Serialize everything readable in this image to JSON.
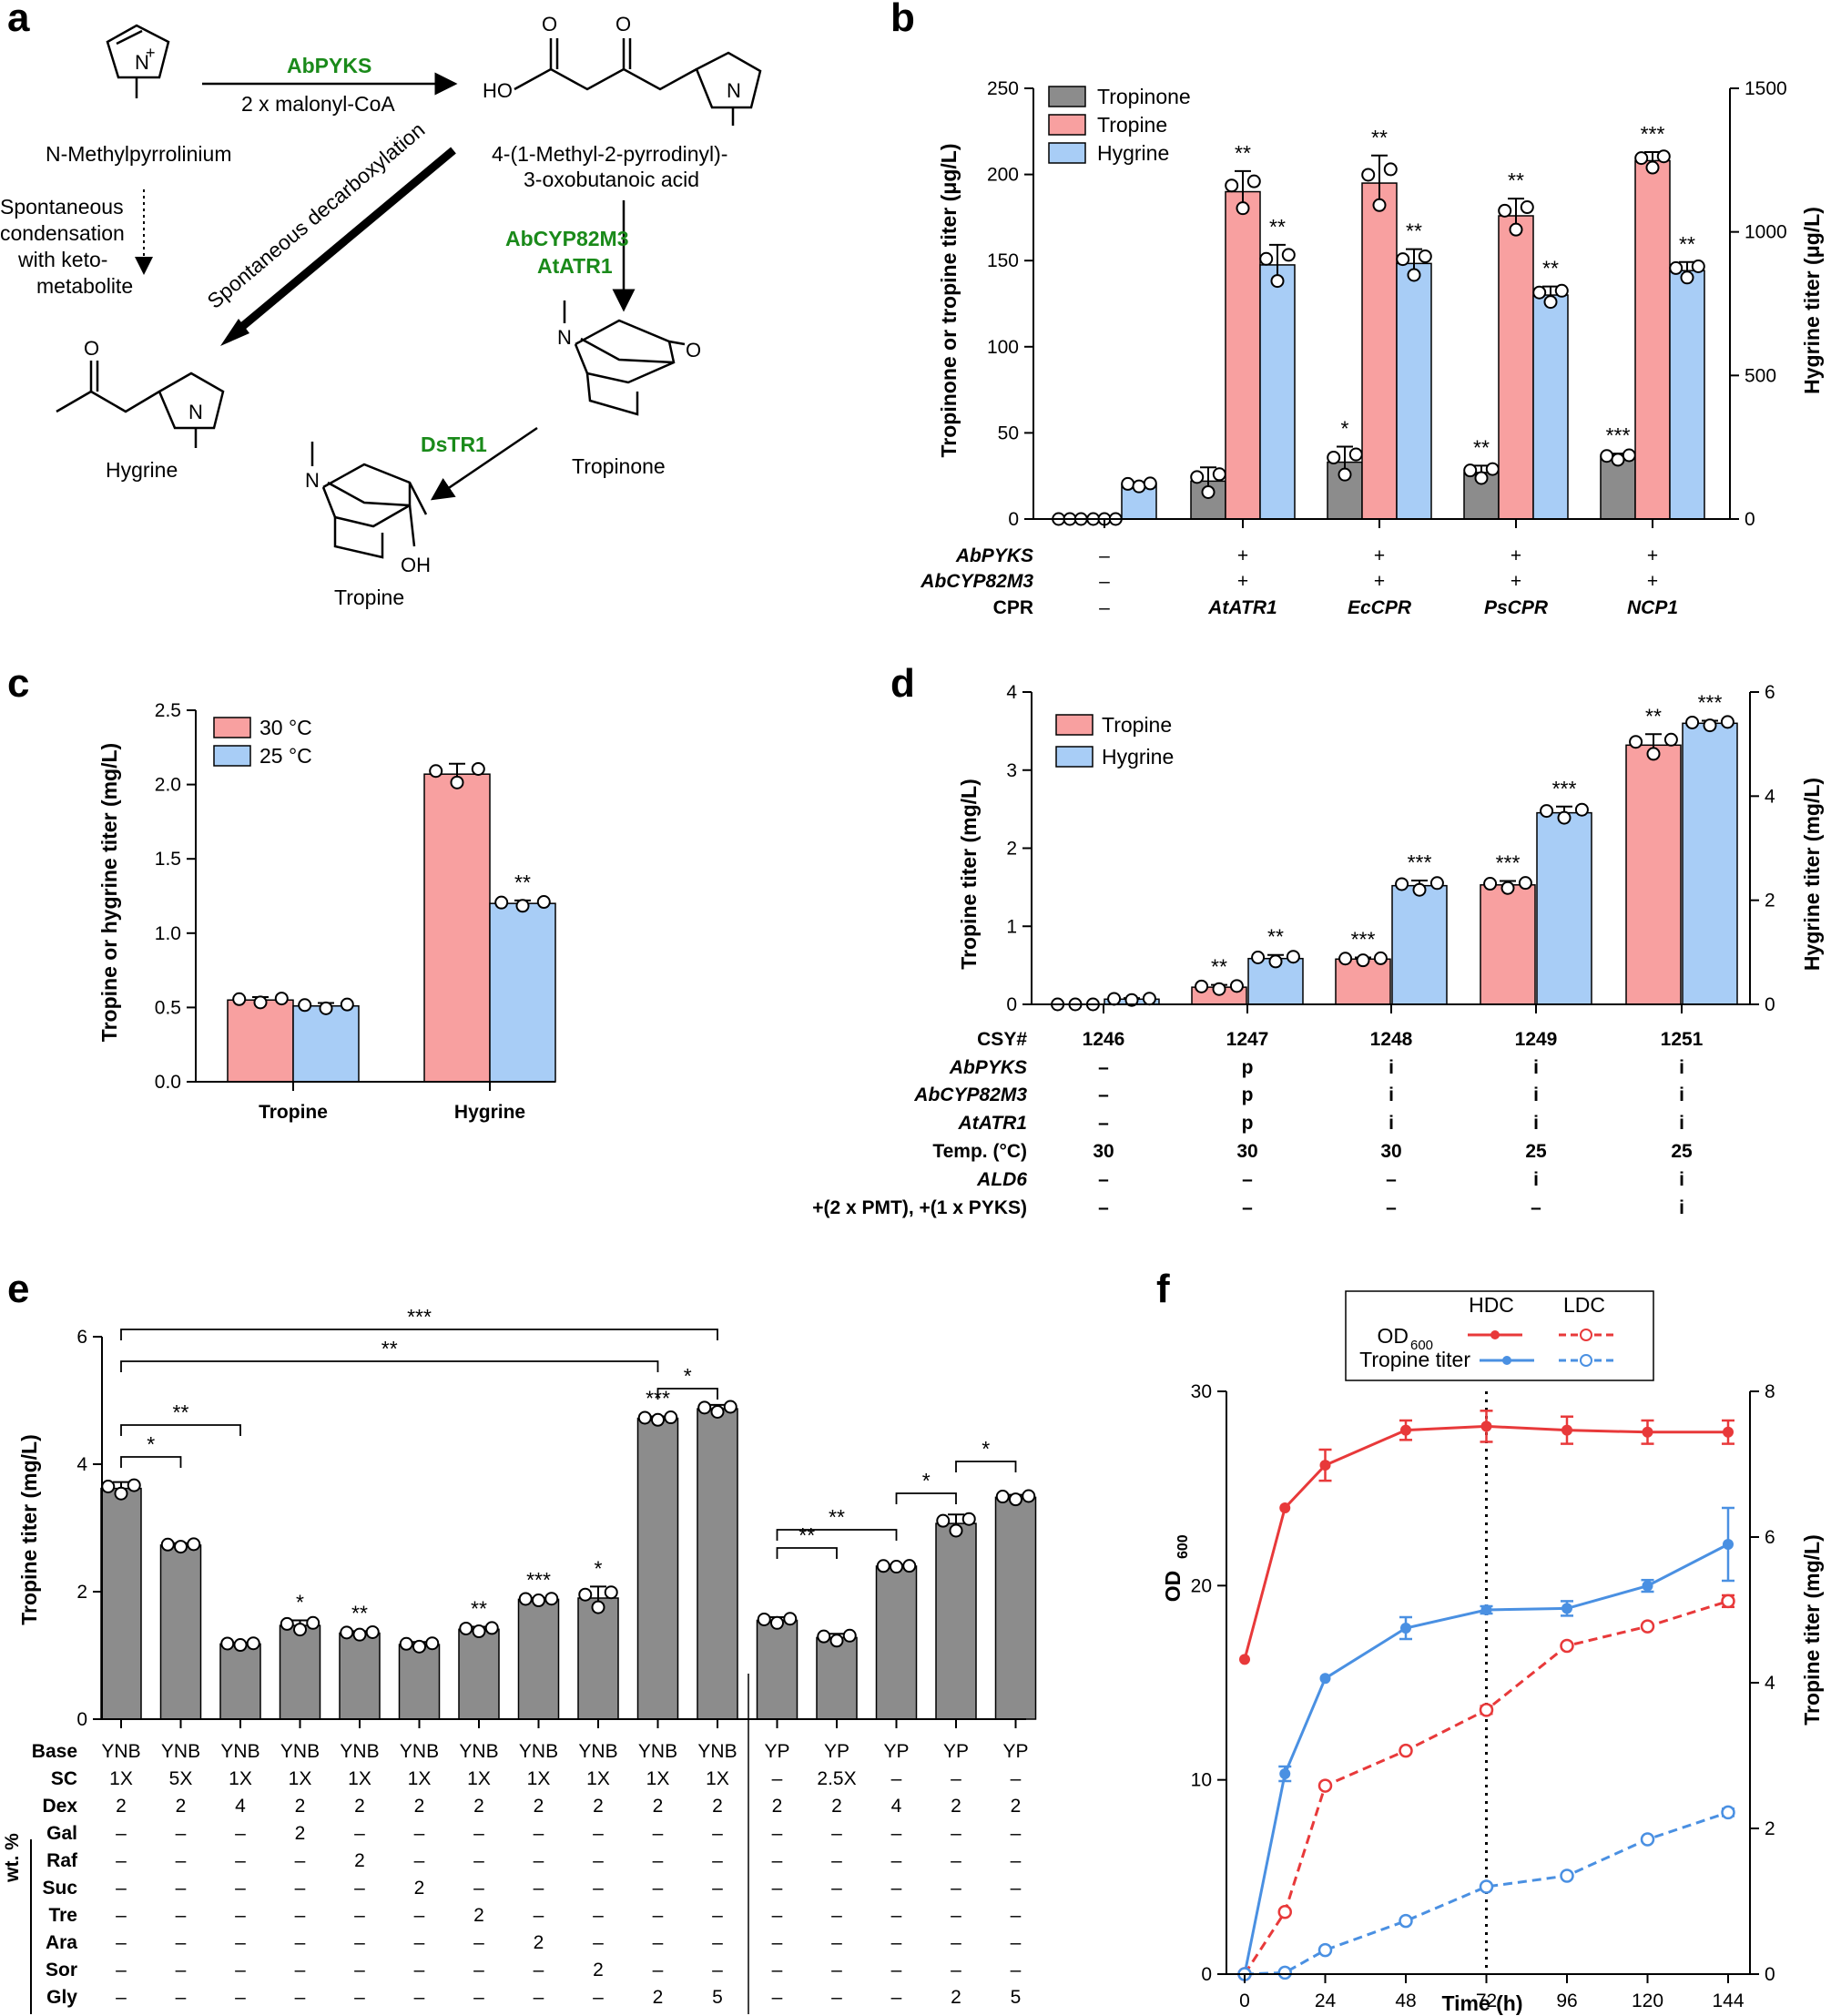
{
  "chart_data": [
    {
      "panel": "a",
      "type": "table",
      "title": "Pathway scheme",
      "compounds": [
        "N-Methylpyrrolinium",
        "4-(1-Methyl-2-pyrrodinyl)-",
        "3-oxobutanoic acid",
        "Hygrine",
        "Tropinone",
        "Tropine"
      ],
      "enzymes": [
        "AbPYKS",
        "AbCYP82M3",
        "AtATR1",
        "DsTR1"
      ],
      "labels": [
        "2 x malonyl-CoA",
        "Spontaneous decarboxylation",
        "Spontaneous",
        "condensation",
        "with keto-",
        "metabolite"
      ]
    },
    {
      "panel": "b",
      "type": "bar",
      "categories": [
        "",
        "AtATR1",
        "EcCPR",
        "PsCPR",
        "NCP1"
      ],
      "series": [
        {
          "name": "Tropinone",
          "axis": "left",
          "values": [
            0,
            22,
            33,
            27,
            36
          ],
          "errors": [
            0,
            8,
            9,
            4,
            2
          ],
          "sig": [
            "",
            "",
            "*",
            "**",
            "***"
          ],
          "color": "#8c8c8c"
        },
        {
          "name": "Tropine",
          "axis": "left",
          "values": [
            0,
            190,
            195,
            176,
            208
          ],
          "errors": [
            0,
            12,
            16,
            10,
            5
          ],
          "sig": [
            "",
            "**",
            "**",
            "**",
            "***"
          ],
          "color": "#f8a0a0"
        },
        {
          "name": "Hygrine",
          "axis": "right",
          "values": [
            120,
            885,
            890,
            780,
            865
          ],
          "errors": [
            8,
            70,
            50,
            30,
            30
          ],
          "sig": [
            "",
            "**",
            "**",
            "**",
            "**"
          ],
          "color": "#a8cdf6"
        }
      ],
      "ylabel": "Tropinone or tropine titer (μg/L)",
      "ylabel_right": "Hygrine titer (μg/L)",
      "ylim": [
        0,
        250
      ],
      "ylim_right": [
        0,
        1500
      ],
      "yticks": [
        "0",
        "50",
        "100",
        "150",
        "200",
        "250"
      ],
      "yticks_right": [
        "0",
        "500",
        "1000",
        "1500"
      ],
      "rows": [
        {
          "label": "AbPYKS",
          "values": [
            "–",
            "+",
            "+",
            "+",
            "+"
          ]
        },
        {
          "label": "AbCYP82M3",
          "values": [
            "–",
            "+",
            "+",
            "+",
            "+"
          ]
        },
        {
          "label": "CPR",
          "values": [
            "–",
            "AtATR1",
            "EcCPR",
            "PsCPR",
            "NCP1"
          ]
        }
      ]
    },
    {
      "panel": "c",
      "type": "bar",
      "categories": [
        "Tropine",
        "Hygrine"
      ],
      "series": [
        {
          "name": "30 °C",
          "values": [
            0.55,
            2.07
          ],
          "errors": [
            0.02,
            0.07
          ],
          "sig": [
            "",
            ""
          ],
          "color": "#f8a0a0"
        },
        {
          "name": "25 °C",
          "values": [
            0.51,
            1.2
          ],
          "errors": [
            0.02,
            0.02
          ],
          "sig": [
            "",
            "**"
          ],
          "color": "#a8cdf6"
        }
      ],
      "ylabel": "Tropine or hygrine titer (mg/L)",
      "ylim": [
        0,
        2.5
      ],
      "yticks": [
        "0.0",
        "0.5",
        "1.0",
        "1.5",
        "2.0",
        "2.5"
      ]
    },
    {
      "panel": "d",
      "type": "bar",
      "categories": [
        "1246",
        "1247",
        "1248",
        "1249",
        "1251"
      ],
      "series": [
        {
          "name": "Tropine",
          "axis": "left",
          "values": [
            0,
            0.22,
            0.58,
            1.53,
            3.32
          ],
          "errors": [
            0,
            0.03,
            0.02,
            0.05,
            0.14
          ],
          "sig": [
            "",
            "**",
            "***",
            "***",
            "**"
          ],
          "color": "#f8a0a0"
        },
        {
          "name": "Hygrine",
          "axis": "right",
          "values": [
            0.1,
            0.88,
            2.28,
            3.68,
            5.4
          ],
          "errors": [
            0.02,
            0.07,
            0.1,
            0.12,
            0.05
          ],
          "sig": [
            "",
            "**",
            "***",
            "***",
            "***"
          ],
          "color": "#a8cdf6"
        }
      ],
      "ylabel": "Tropine titer (mg/L)",
      "ylabel_right": "Hygrine titer (mg/L)",
      "ylim": [
        0,
        4
      ],
      "ylim_right": [
        0,
        6
      ],
      "yticks": [
        "0",
        "1",
        "2",
        "3",
        "4"
      ],
      "yticks_right": [
        "0",
        "2",
        "4",
        "6"
      ],
      "rows": [
        {
          "label": "CSY#",
          "italic": false,
          "values": [
            "1246",
            "1247",
            "1248",
            "1249",
            "1251"
          ]
        },
        {
          "label": "AbPYKS",
          "italic": true,
          "values": [
            "–",
            "p",
            "i",
            "i",
            "i"
          ]
        },
        {
          "label": "AbCYP82M3",
          "italic": true,
          "values": [
            "–",
            "p",
            "i",
            "i",
            "i"
          ]
        },
        {
          "label": "AtATR1",
          "italic": true,
          "values": [
            "–",
            "p",
            "i",
            "i",
            "i"
          ]
        },
        {
          "label": "Temp. (°C)",
          "italic": false,
          "values": [
            "30",
            "30",
            "30",
            "25",
            "25"
          ]
        },
        {
          "label": "ALD6",
          "italic": true,
          "values": [
            "–",
            "–",
            "–",
            "i",
            "i"
          ]
        },
        {
          "label": "+(2 x PMT), +(1 x PYKS)",
          "italic": false,
          "values": [
            "–",
            "–",
            "–",
            "–",
            "i"
          ]
        }
      ]
    },
    {
      "panel": "e",
      "type": "bar",
      "values": [
        3.62,
        2.73,
        1.18,
        1.47,
        1.35,
        1.17,
        1.41,
        1.88,
        1.9,
        4.72,
        4.87,
        1.55,
        1.28,
        2.4,
        3.07,
        3.48
      ],
      "errors": [
        0.1,
        0.03,
        0.02,
        0.08,
        0.03,
        0.04,
        0.04,
        0.02,
        0.18,
        0.03,
        0.06,
        0.05,
        0.06,
        0.01,
        0.14,
        0.04
      ],
      "sig": [
        "",
        "",
        "",
        "*",
        "**",
        "",
        "**",
        "***",
        "*",
        "***",
        "",
        "",
        "",
        "",
        "",
        ""
      ],
      "color": "#8c8c8c",
      "ylabel": "Tropine titer (mg/L)",
      "ylim": [
        0,
        6
      ],
      "yticks": [
        "0",
        "2",
        "4",
        "6"
      ],
      "brackets": [
        {
          "from": 1,
          "to": 2,
          "label": "*"
        },
        {
          "from": 1,
          "to": 3,
          "label": "**"
        },
        {
          "from": 1,
          "to": 10,
          "label": "**"
        },
        {
          "from": 1,
          "to": 11,
          "label": "***"
        },
        {
          "from": 10,
          "to": 11,
          "label": "*"
        },
        {
          "from": 12,
          "to": 13,
          "label": "**"
        },
        {
          "from": 12,
          "to": 14,
          "label": "**"
        },
        {
          "from": 14,
          "to": 15,
          "label": "*"
        },
        {
          "from": 15,
          "to": 16,
          "label": "*"
        }
      ],
      "rows": [
        {
          "label": "Base",
          "values": [
            "YNB",
            "YNB",
            "YNB",
            "YNB",
            "YNB",
            "YNB",
            "YNB",
            "YNB",
            "YNB",
            "YNB",
            "YNB",
            "YP",
            "YP",
            "YP",
            "YP",
            "YP"
          ]
        },
        {
          "label": "SC",
          "values": [
            "1X",
            "5X",
            "1X",
            "1X",
            "1X",
            "1X",
            "1X",
            "1X",
            "1X",
            "1X",
            "1X",
            "–",
            "2.5X",
            "–",
            "–",
            "–"
          ]
        },
        {
          "label": "Dex",
          "values": [
            "2",
            "2",
            "4",
            "2",
            "2",
            "2",
            "2",
            "2",
            "2",
            "2",
            "2",
            "2",
            "2",
            "4",
            "2",
            "2"
          ]
        },
        {
          "label": "Gal",
          "values": [
            "–",
            "–",
            "–",
            "2",
            "–",
            "–",
            "–",
            "–",
            "–",
            "–",
            "–",
            "–",
            "–",
            "–",
            "–",
            "–"
          ]
        },
        {
          "label": "Raf",
          "values": [
            "–",
            "–",
            "–",
            "–",
            "2",
            "–",
            "–",
            "–",
            "–",
            "–",
            "–",
            "–",
            "–",
            "–",
            "–",
            "–"
          ]
        },
        {
          "label": "Suc",
          "values": [
            "–",
            "–",
            "–",
            "–",
            "–",
            "2",
            "–",
            "–",
            "–",
            "–",
            "–",
            "–",
            "–",
            "–",
            "–",
            "–"
          ]
        },
        {
          "label": "Tre",
          "values": [
            "–",
            "–",
            "–",
            "–",
            "–",
            "–",
            "2",
            "–",
            "–",
            "–",
            "–",
            "–",
            "–",
            "–",
            "–",
            "–"
          ]
        },
        {
          "label": "Ara",
          "values": [
            "–",
            "–",
            "–",
            "–",
            "–",
            "–",
            "–",
            "2",
            "–",
            "–",
            "–",
            "–",
            "–",
            "–",
            "–",
            "–"
          ]
        },
        {
          "label": "Sor",
          "values": [
            "–",
            "–",
            "–",
            "–",
            "–",
            "–",
            "–",
            "–",
            "2",
            "–",
            "–",
            "–",
            "–",
            "–",
            "–",
            "–"
          ]
        },
        {
          "label": "Gly",
          "values": [
            "–",
            "–",
            "–",
            "–",
            "–",
            "–",
            "–",
            "–",
            "–",
            "2",
            "5",
            "–",
            "–",
            "–",
            "2",
            "5"
          ]
        }
      ],
      "group_label": "wt. %"
    },
    {
      "panel": "f",
      "type": "line",
      "x": [
        0,
        12,
        24,
        48,
        72,
        96,
        120,
        144
      ],
      "series": [
        {
          "name": "OD600 HDC",
          "axis": "left",
          "dashed": false,
          "color": "#e8393a",
          "values": [
            16.2,
            24.0,
            26.2,
            28.0,
            28.2,
            28.0,
            27.9,
            27.9
          ],
          "errors": [
            0,
            0,
            0.8,
            0.5,
            0.8,
            0.7,
            0.6,
            0.6
          ]
        },
        {
          "name": "Tropine titer HDC",
          "axis": "right",
          "dashed": false,
          "color": "#4a90e2",
          "values": [
            0,
            2.75,
            4.06,
            4.75,
            5.0,
            5.02,
            5.33,
            5.9
          ],
          "errors": [
            0,
            0.1,
            0,
            0.15,
            0.05,
            0.1,
            0.08,
            0.5
          ]
        },
        {
          "name": "OD600 LDC",
          "axis": "left",
          "dashed": true,
          "color": "#e8393a",
          "values": [
            0,
            3.2,
            9.7,
            11.5,
            13.6,
            16.9,
            17.9,
            19.2
          ],
          "errors": [
            0,
            0,
            0,
            0,
            0.2,
            0,
            0,
            0.3
          ]
        },
        {
          "name": "Tropine titer LDC",
          "axis": "right",
          "dashed": true,
          "color": "#4a90e2",
          "values": [
            0,
            0.02,
            0.33,
            0.73,
            1.2,
            1.35,
            1.85,
            2.22
          ],
          "errors": [
            0,
            0,
            0,
            0,
            0,
            0,
            0,
            0.05
          ]
        }
      ],
      "vline_x": 72,
      "xlabel": "Time (h)",
      "ylabel": "OD",
      "ylabel_sub": "600",
      "ylabel_right": "Tropine titer (mg/L)",
      "xlim": [
        0,
        144
      ],
      "ylim": [
        0,
        30
      ],
      "ylim_right": [
        0,
        8
      ],
      "xticks": [
        "0",
        "24",
        "48",
        "72",
        "96",
        "120",
        "144"
      ],
      "yticks": [
        "0",
        "10",
        "20",
        "30"
      ],
      "yticks_right": [
        "0",
        "2",
        "4",
        "6",
        "8"
      ],
      "legend": {
        "col1": "HDC",
        "col2": "LDC",
        "row1": "OD",
        "row1_sub": "600",
        "row2": "Tropine titer",
        "position": "top-center"
      }
    }
  ],
  "panel_labels": [
    "a",
    "b",
    "c",
    "d",
    "e",
    "f"
  ]
}
